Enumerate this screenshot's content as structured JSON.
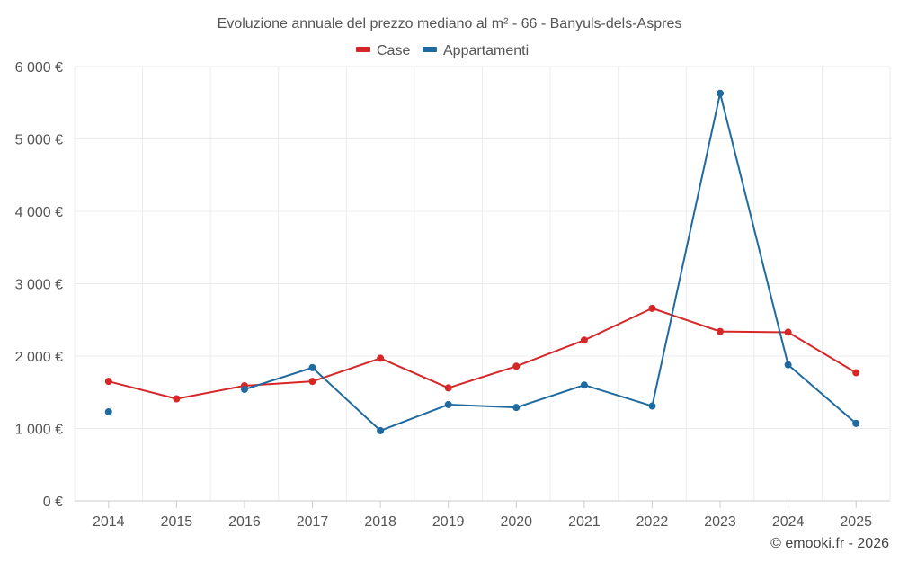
{
  "chart_data": {
    "type": "line",
    "title": "Evoluzione annuale del prezzo mediano al m² - 66 - Banyuls-dels-Aspres",
    "categories": [
      "2014",
      "2015",
      "2016",
      "2017",
      "2018",
      "2019",
      "2020",
      "2021",
      "2022",
      "2023",
      "2024",
      "2025"
    ],
    "y_ticks": [
      0,
      1000,
      2000,
      3000,
      4000,
      5000,
      6000
    ],
    "y_tick_labels": [
      "0 €",
      "1 000 €",
      "2 000 €",
      "3 000 €",
      "4 000 €",
      "5 000 €",
      "6 000 €"
    ],
    "ylim": [
      0,
      6000
    ],
    "xlabel": "",
    "ylabel": "",
    "grid": true,
    "legend_position": "top-center",
    "series": [
      {
        "name": "Case",
        "color": "#d62728",
        "values": [
          1650,
          1410,
          1590,
          1650,
          1970,
          1560,
          1860,
          2220,
          2660,
          2340,
          2330,
          1770
        ]
      },
      {
        "name": "Appartamenti",
        "color": "#1f6a9e",
        "values": [
          1230,
          null,
          1540,
          1840,
          970,
          1330,
          1290,
          1600,
          1310,
          5630,
          1880,
          1070
        ]
      }
    ]
  },
  "credit": "© emooki.fr - 2026"
}
